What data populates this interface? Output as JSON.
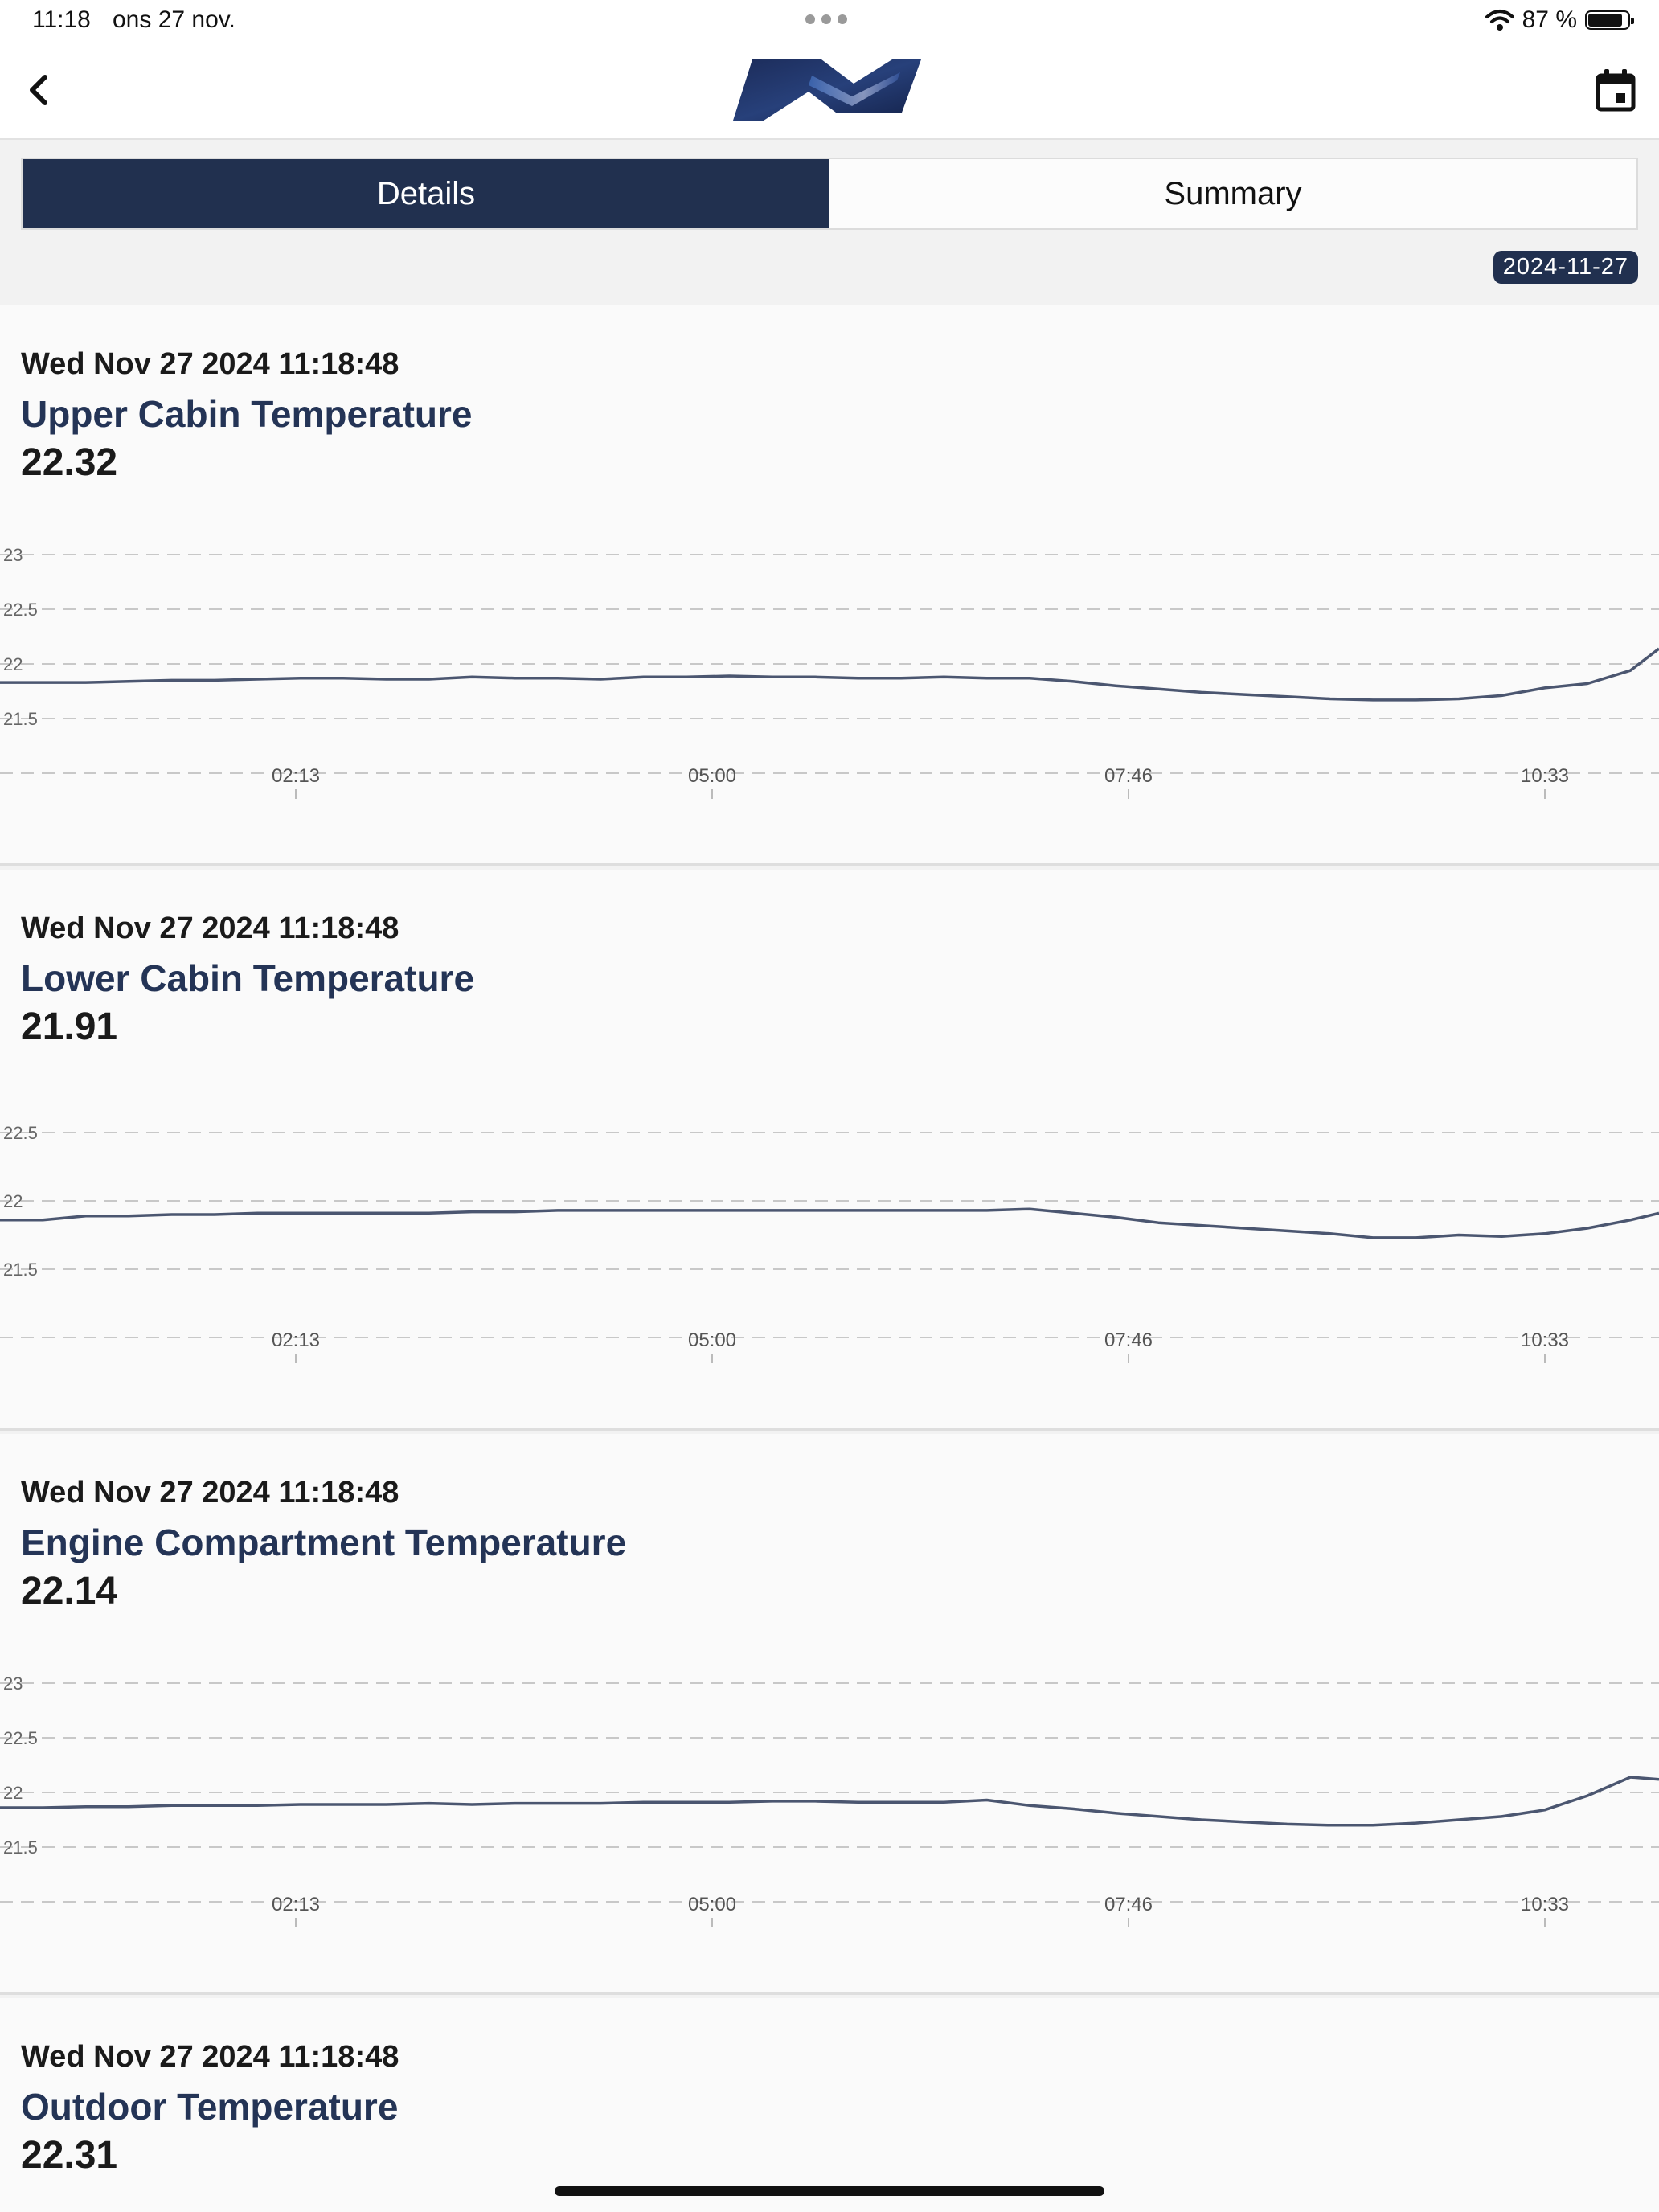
{
  "status_bar": {
    "time": "11:18",
    "date": "ons 27 nov.",
    "battery_text": "87 %",
    "battery_level": 0.87
  },
  "nav": {
    "back_icon": "chevron-left-icon",
    "logo": "brand-logo",
    "calendar_icon": "calendar-icon"
  },
  "tabs": [
    {
      "label": "Details",
      "active": true
    },
    {
      "label": "Summary",
      "active": false
    }
  ],
  "selected_date": "2024-11-27",
  "colors": {
    "primary": "#21304f",
    "line": "#4b5670"
  },
  "sensors": [
    {
      "timestamp": "Wed Nov 27 2024 11:18:48",
      "title": "Upper Cabin Temperature",
      "value": "22.32",
      "chart_data": {
        "type": "line",
        "y_ticks": [
          "23",
          "22.5",
          "22",
          "21.5"
        ],
        "x_ticks": [
          "02:13",
          "05:00",
          "07:46",
          "10:33"
        ],
        "ylim": [
          21.0,
          23.0
        ],
        "xlim": [
          0.0,
          11.6
        ],
        "grid": true,
        "series": [
          {
            "x": [
              0.0,
              0.3,
              0.6,
              0.9,
              1.2,
              1.5,
              1.8,
              2.1,
              2.4,
              2.7,
              3.0,
              3.3,
              3.6,
              3.9,
              4.2,
              4.5,
              4.8,
              5.1,
              5.4,
              5.7,
              6.0,
              6.3,
              6.6,
              6.9,
              7.2,
              7.5,
              7.8,
              8.1,
              8.4,
              8.7,
              9.0,
              9.3,
              9.6,
              9.9,
              10.2,
              10.5,
              10.8,
              11.1,
              11.4,
              11.6
            ],
            "y": [
              21.83,
              21.83,
              21.83,
              21.84,
              21.85,
              21.85,
              21.86,
              21.87,
              21.87,
              21.86,
              21.86,
              21.88,
              21.87,
              21.87,
              21.86,
              21.88,
              21.88,
              21.89,
              21.88,
              21.88,
              21.87,
              21.87,
              21.88,
              21.87,
              21.87,
              21.84,
              21.8,
              21.77,
              21.74,
              21.72,
              21.7,
              21.68,
              21.67,
              21.67,
              21.68,
              21.71,
              21.78,
              21.82,
              21.94,
              22.14
            ]
          }
        ]
      }
    },
    {
      "timestamp": "Wed Nov 27 2024 11:18:48",
      "title": "Lower Cabin Temperature",
      "value": "21.91",
      "chart_data": {
        "type": "line",
        "y_ticks": [
          "22.5",
          "22",
          "21.5"
        ],
        "x_ticks": [
          "02:13",
          "05:00",
          "07:46",
          "10:33"
        ],
        "ylim": [
          21.0,
          22.6
        ],
        "xlim": [
          0.0,
          11.6
        ],
        "grid": true,
        "series": [
          {
            "x": [
              0.0,
              0.3,
              0.6,
              0.9,
              1.2,
              1.5,
              1.8,
              2.1,
              2.4,
              2.7,
              3.0,
              3.3,
              3.6,
              3.9,
              4.2,
              4.5,
              4.8,
              5.1,
              5.4,
              5.7,
              6.0,
              6.3,
              6.6,
              6.9,
              7.2,
              7.5,
              7.8,
              8.1,
              8.4,
              8.7,
              9.0,
              9.3,
              9.6,
              9.9,
              10.2,
              10.5,
              10.8,
              11.1,
              11.4,
              11.6
            ],
            "y": [
              21.86,
              21.86,
              21.89,
              21.89,
              21.9,
              21.9,
              21.91,
              21.91,
              21.91,
              21.91,
              21.91,
              21.92,
              21.92,
              21.93,
              21.93,
              21.93,
              21.93,
              21.93,
              21.93,
              21.93,
              21.93,
              21.93,
              21.93,
              21.93,
              21.94,
              21.91,
              21.88,
              21.84,
              21.82,
              21.8,
              21.78,
              21.76,
              21.73,
              21.73,
              21.75,
              21.74,
              21.76,
              21.8,
              21.86,
              21.91
            ]
          }
        ]
      }
    },
    {
      "timestamp": "Wed Nov 27 2024 11:18:48",
      "title": "Engine Compartment Temperature",
      "value": "22.14",
      "chart_data": {
        "type": "line",
        "y_ticks": [
          "23",
          "22.5",
          "22",
          "21.5"
        ],
        "x_ticks": [
          "02:13",
          "05:00",
          "07:46",
          "10:33"
        ],
        "ylim": [
          21.0,
          23.0
        ],
        "xlim": [
          0.0,
          11.6
        ],
        "grid": true,
        "series": [
          {
            "x": [
              0.0,
              0.3,
              0.6,
              0.9,
              1.2,
              1.5,
              1.8,
              2.1,
              2.4,
              2.7,
              3.0,
              3.3,
              3.6,
              3.9,
              4.2,
              4.5,
              4.8,
              5.1,
              5.4,
              5.7,
              6.0,
              6.3,
              6.6,
              6.9,
              7.2,
              7.5,
              7.8,
              8.1,
              8.4,
              8.7,
              9.0,
              9.3,
              9.6,
              9.9,
              10.2,
              10.5,
              10.8,
              11.1,
              11.4,
              11.6
            ],
            "y": [
              21.86,
              21.86,
              21.87,
              21.87,
              21.88,
              21.88,
              21.88,
              21.89,
              21.89,
              21.89,
              21.9,
              21.89,
              21.9,
              21.9,
              21.9,
              21.91,
              21.91,
              21.91,
              21.92,
              21.92,
              21.91,
              21.91,
              21.91,
              21.93,
              21.88,
              21.85,
              21.81,
              21.78,
              21.75,
              21.73,
              21.71,
              21.7,
              21.7,
              21.72,
              21.75,
              21.78,
              21.84,
              21.97,
              22.14,
              22.12
            ]
          }
        ]
      }
    },
    {
      "timestamp": "Wed Nov 27 2024 11:18:48",
      "title": "Outdoor Temperature",
      "value": "22.31"
    }
  ]
}
